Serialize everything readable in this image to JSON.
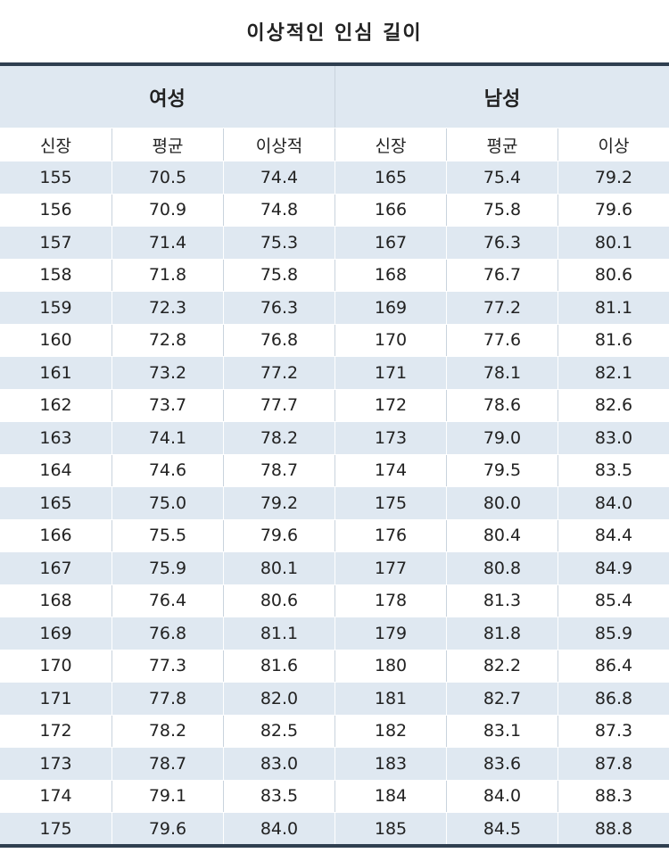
{
  "header": {
    "title": "이상적인 인심 길이"
  },
  "table": {
    "groups": [
      "여성",
      "남성"
    ],
    "columns": [
      "신장",
      "평균",
      "이상적",
      "신장",
      "평균",
      "이상"
    ],
    "rows": [
      [
        "155",
        "70.5",
        "74.4",
        "165",
        "75.4",
        "79.2"
      ],
      [
        "156",
        "70.9",
        "74.8",
        "166",
        "75.8",
        "79.6"
      ],
      [
        "157",
        "71.4",
        "75.3",
        "167",
        "76.3",
        "80.1"
      ],
      [
        "158",
        "71.8",
        "75.8",
        "168",
        "76.7",
        "80.6"
      ],
      [
        "159",
        "72.3",
        "76.3",
        "169",
        "77.2",
        "81.1"
      ],
      [
        "160",
        "72.8",
        "76.8",
        "170",
        "77.6",
        "81.6"
      ],
      [
        "161",
        "73.2",
        "77.2",
        "171",
        "78.1",
        "82.1"
      ],
      [
        "162",
        "73.7",
        "77.7",
        "172",
        "78.6",
        "82.6"
      ],
      [
        "163",
        "74.1",
        "78.2",
        "173",
        "79.0",
        "83.0"
      ],
      [
        "164",
        "74.6",
        "78.7",
        "174",
        "79.5",
        "83.5"
      ],
      [
        "165",
        "75.0",
        "79.2",
        "175",
        "80.0",
        "84.0"
      ],
      [
        "166",
        "75.5",
        "79.6",
        "176",
        "80.4",
        "84.4"
      ],
      [
        "167",
        "75.9",
        "80.1",
        "177",
        "80.8",
        "84.9"
      ],
      [
        "168",
        "76.4",
        "80.6",
        "178",
        "81.3",
        "85.4"
      ],
      [
        "169",
        "76.8",
        "81.1",
        "179",
        "81.8",
        "85.9"
      ],
      [
        "170",
        "77.3",
        "81.6",
        "180",
        "82.2",
        "86.4"
      ],
      [
        "171",
        "77.8",
        "82.0",
        "181",
        "82.7",
        "86.8"
      ],
      [
        "172",
        "78.2",
        "82.5",
        "182",
        "83.1",
        "87.3"
      ],
      [
        "173",
        "78.7",
        "83.0",
        "183",
        "83.6",
        "87.8"
      ],
      [
        "174",
        "79.1",
        "83.5",
        "184",
        "84.0",
        "88.3"
      ],
      [
        "175",
        "79.6",
        "84.0",
        "185",
        "84.5",
        "88.8"
      ]
    ]
  }
}
